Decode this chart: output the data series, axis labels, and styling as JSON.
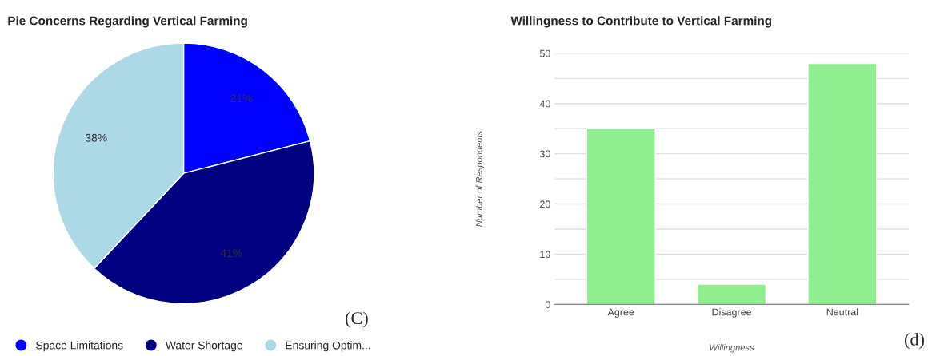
{
  "chart_data": [
    {
      "type": "pie",
      "title": "Pie Concerns Regarding Vertical Farming",
      "categories": [
        "Space Limitations",
        "Water Shortage",
        "Ensuring Optim..."
      ],
      "values": [
        21,
        41,
        38
      ],
      "value_labels": [
        "21%",
        "41%",
        "38%"
      ],
      "colors": [
        "#0000ff",
        "#000080",
        "#add8e6"
      ],
      "legend": "bottom",
      "annotations": [
        "(C)"
      ]
    },
    {
      "type": "bar",
      "title": "Willingness to Contribute to Vertical Farming",
      "categories": [
        "Agree",
        "Disagree",
        "Neutral"
      ],
      "values": [
        35,
        4,
        48
      ],
      "color": "#90ee90",
      "xlabel": "Willingness",
      "ylabel": "Number of Respondents",
      "ylim": [
        0,
        50
      ],
      "yticks": [
        0,
        {
          "value": 5,
          "label": null
        },
        10,
        {
          "value": 15,
          "label": null
        },
        20,
        {
          "value": 25,
          "label": null
        },
        30,
        {
          "value": 35,
          "label": null
        },
        40,
        {
          "value": 45,
          "label": null
        },
        50
      ],
      "grid": "y",
      "legend": false,
      "annotations": [
        "(d)"
      ]
    }
  ]
}
